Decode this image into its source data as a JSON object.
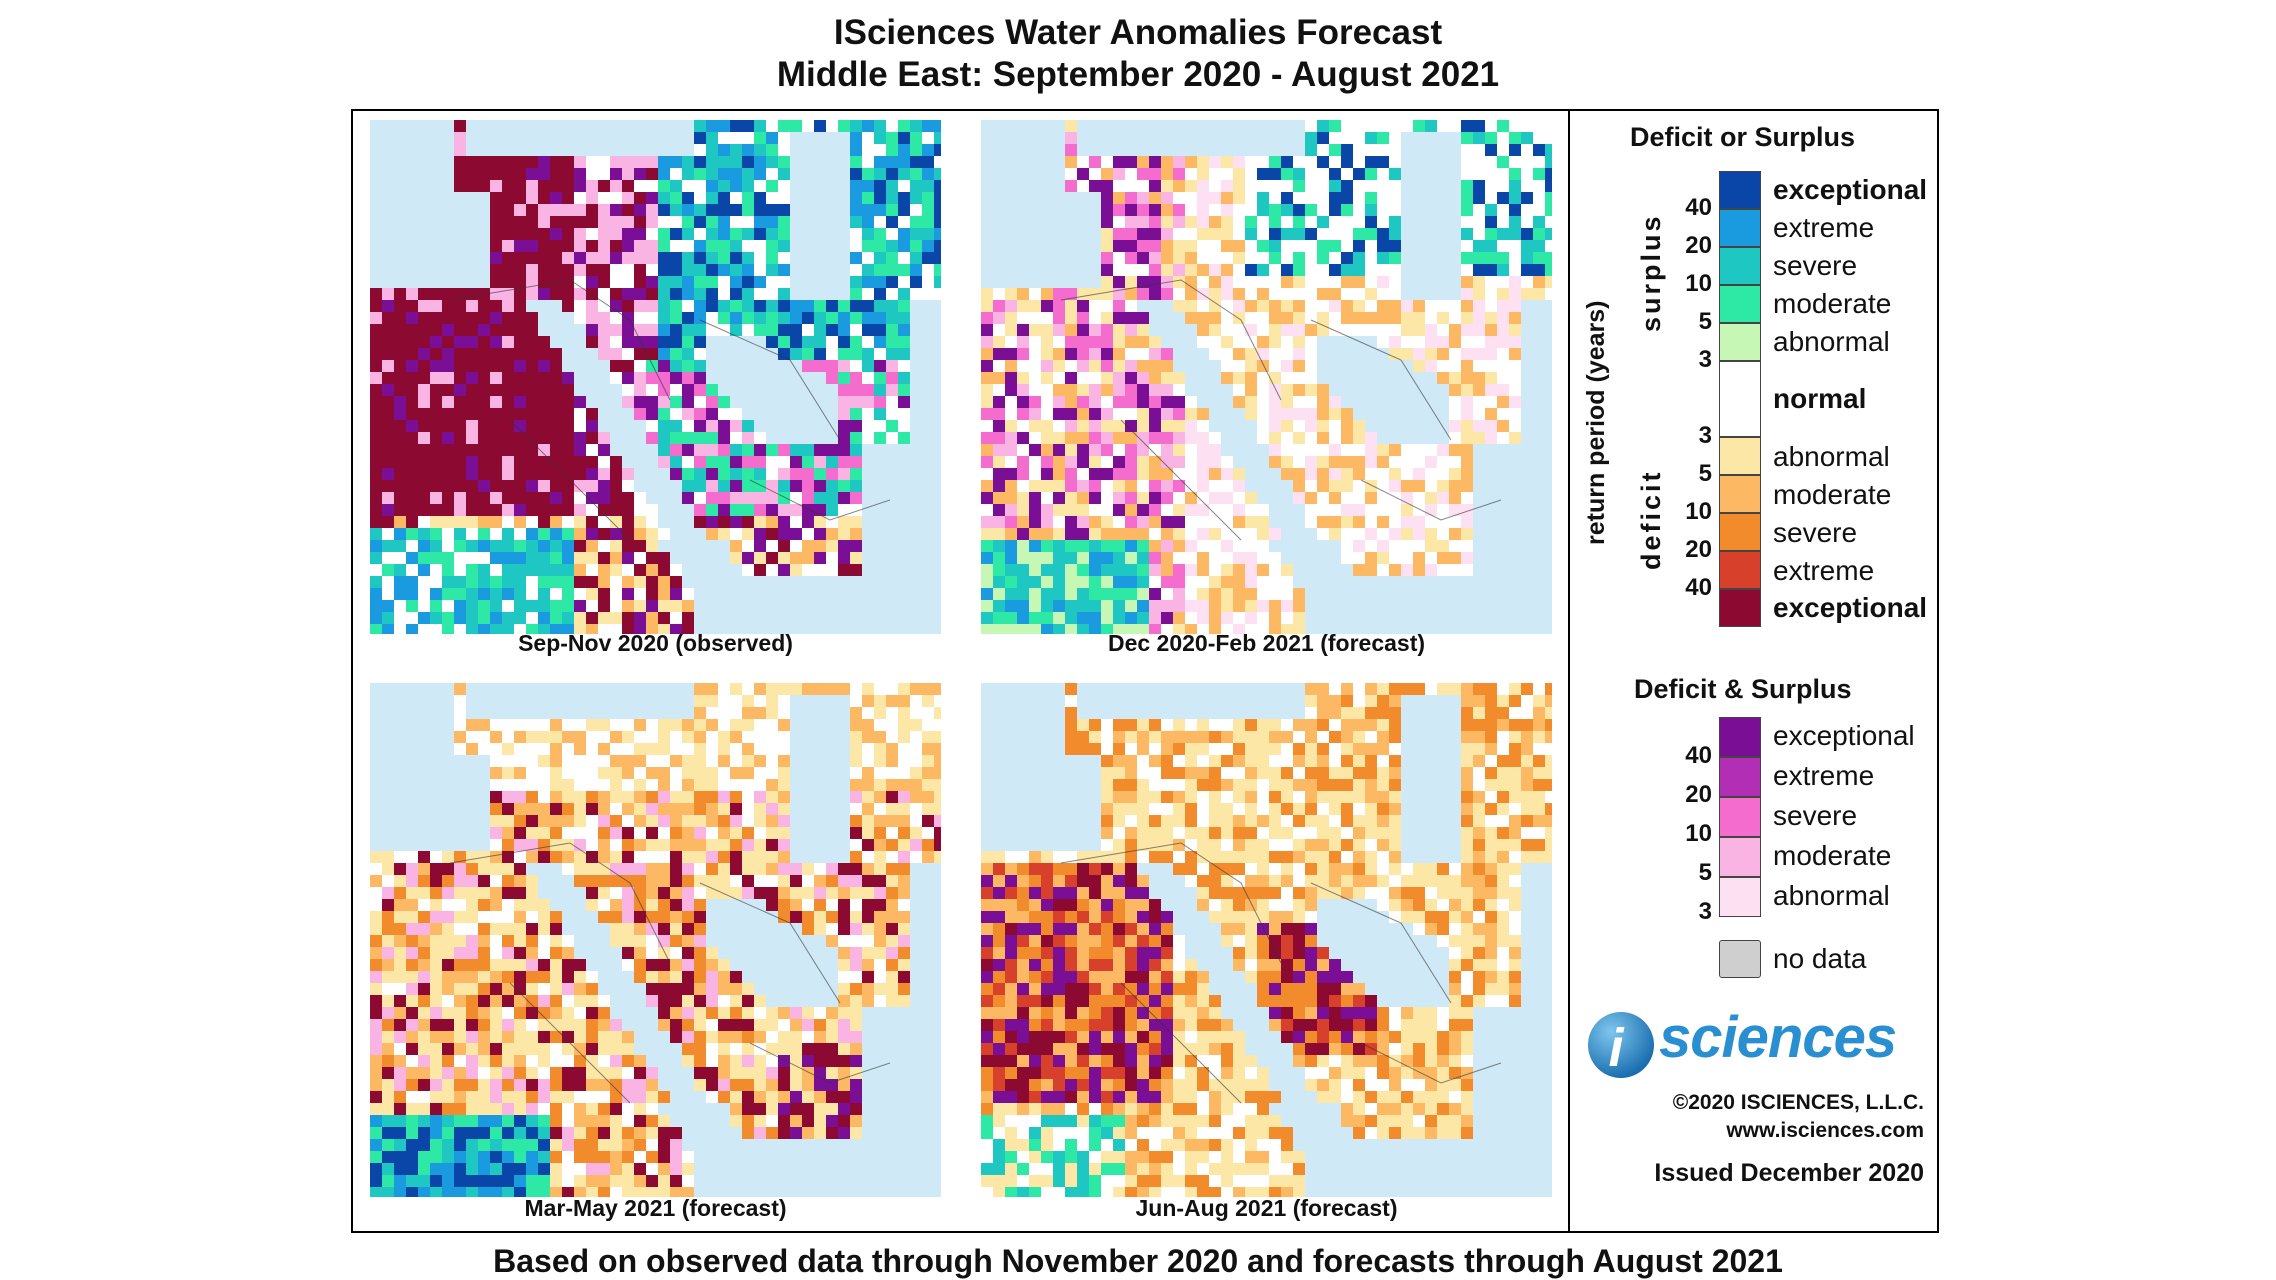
{
  "title": {
    "line1": "ISciences Water Anomalies Forecast",
    "line2": "Middle East: September 2020 - August 2021"
  },
  "panels": [
    {
      "caption": "Sep-Nov 2020 (observed)"
    },
    {
      "caption": "Dec 2020-Feb 2021 (forecast)"
    },
    {
      "caption": "Mar-May 2021 (forecast)"
    },
    {
      "caption": "Jun-Aug 2021 (forecast)"
    }
  ],
  "footer": "Based on observed data through November 2020 and forecasts through August 2021",
  "legend": {
    "deficit_or_surplus": {
      "title": "Deficit or Surplus",
      "axis_label": "return period (years)",
      "surplus_label": "surplus",
      "deficit_label": "deficit",
      "normal_label": "normal",
      "surplus_items": [
        {
          "label": "exceptional",
          "color": "#0a46a8"
        },
        {
          "label": "extreme",
          "color": "#1a9be0"
        },
        {
          "label": "severe",
          "color": "#1ec7c2"
        },
        {
          "label": "moderate",
          "color": "#2ee8a6"
        },
        {
          "label": "abnormal",
          "color": "#c6f7b4"
        }
      ],
      "surplus_ticks": [
        "40",
        "20",
        "10",
        "5",
        "3"
      ],
      "deficit_items": [
        {
          "label": "abnormal",
          "color": "#fde7a6"
        },
        {
          "label": "moderate",
          "color": "#fdb863"
        },
        {
          "label": "severe",
          "color": "#f28b2c"
        },
        {
          "label": "extreme",
          "color": "#d7402b"
        },
        {
          "label": "exceptional",
          "color": "#8c0a32"
        }
      ],
      "deficit_ticks": [
        "3",
        "5",
        "10",
        "20",
        "40"
      ],
      "normal_color": "#ffffff"
    },
    "deficit_and_surplus": {
      "title": "Deficit & Surplus",
      "items": [
        {
          "label": "exceptional",
          "color": "#7a0f96"
        },
        {
          "label": "extreme",
          "color": "#b22fb5"
        },
        {
          "label": "severe",
          "color": "#f56ccf"
        },
        {
          "label": "moderate",
          "color": "#f9b4e4"
        },
        {
          "label": "abnormal",
          "color": "#fde0f1"
        }
      ],
      "ticks": [
        "40",
        "20",
        "10",
        "5",
        "3"
      ]
    },
    "no_data": {
      "label": "no data",
      "color": "#cfcfcf"
    }
  },
  "branding": {
    "logo_letter": "i",
    "logo_word": "sciences",
    "copyright": "©2020 ISCIENCES, L.L.C.",
    "website": "www.isciences.com",
    "issued": "Issued December 2020"
  }
}
